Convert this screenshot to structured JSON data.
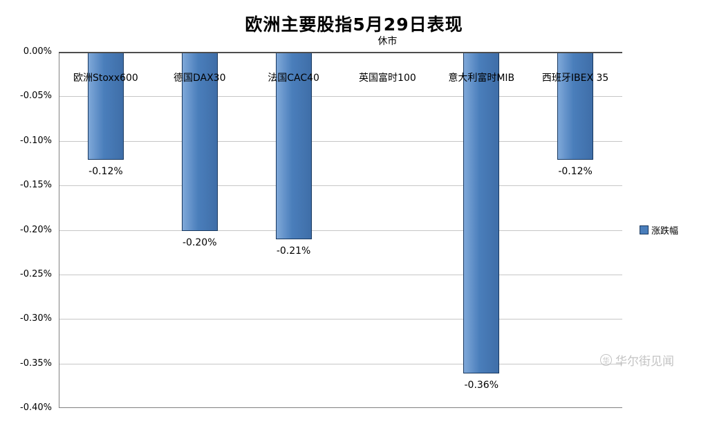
{
  "title": "欧洲主要股指5月29日表现",
  "legend": {
    "label": "涨跌幅",
    "color": "#4a7ebb"
  },
  "watermark": {
    "text": "华尔街见闻",
    "icon": "wscn-circle-logo",
    "icon_glyph": "华"
  },
  "chart_data": {
    "type": "bar",
    "title": "欧洲主要股指5月29日表现",
    "categories": [
      "欧洲Stoxx600",
      "德国DAX30",
      "法国CAC40",
      "英国富时100",
      "意大利富时MIB",
      "西班牙IBEX 35"
    ],
    "series": [
      {
        "name": "涨跌幅",
        "values": [
          -0.12,
          -0.2,
          -0.21,
          null,
          -0.36,
          -0.12
        ],
        "data_labels": [
          "-0.12%",
          "-0.20%",
          "-0.21%",
          "",
          "-0.36%",
          "-0.12%"
        ]
      }
    ],
    "annotations": [
      {
        "text": "休市",
        "category_index": 3
      }
    ],
    "ylim": [
      -0.4,
      0.0
    ],
    "ytick_step": 0.05,
    "ytick_labels": [
      "0.00%",
      "-0.05%",
      "-0.10%",
      "-0.15%",
      "-0.20%",
      "-0.25%",
      "-0.30%",
      "-0.35%",
      "-0.40%"
    ],
    "grid": true,
    "legend_position": "right",
    "bar_color": "#4a7ebb",
    "bar_border_color": "#17375e"
  }
}
